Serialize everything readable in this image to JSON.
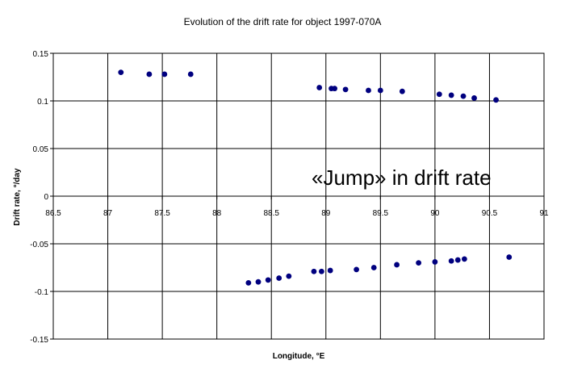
{
  "chart_data": {
    "type": "scatter",
    "title": "Evolution of the drift rate for object 1997-070A",
    "xlabel": "Longitude, °E",
    "ylabel": "Drift rate, °/day",
    "xlim": [
      86.5,
      91
    ],
    "ylim": [
      -0.15,
      0.15
    ],
    "x_ticks": [
      "86.5",
      "87",
      "87.5",
      "88",
      "88.5",
      "89",
      "89.5",
      "90",
      "90.5",
      "91"
    ],
    "y_ticks": [
      "0.15",
      "0.1",
      "0.05",
      "0",
      "-0.05",
      "-0.1",
      "-0.15"
    ],
    "grid": true,
    "legend": "none",
    "marker_color": "#00007f",
    "annotation": "«Jump» in drift rate",
    "series": [
      {
        "points": [
          [
            87.12,
            0.13
          ],
          [
            87.38,
            0.128
          ],
          [
            87.52,
            0.128
          ],
          [
            87.76,
            0.128
          ],
          [
            88.94,
            0.114
          ],
          [
            89.05,
            0.113
          ],
          [
            89.08,
            0.113
          ],
          [
            89.18,
            0.112
          ],
          [
            89.39,
            0.111
          ],
          [
            89.5,
            0.111
          ],
          [
            89.7,
            0.11
          ],
          [
            90.04,
            0.107
          ],
          [
            90.15,
            0.106
          ],
          [
            90.26,
            0.105
          ],
          [
            90.36,
            0.103
          ],
          [
            90.56,
            0.101
          ],
          [
            88.29,
            -0.091
          ],
          [
            88.38,
            -0.09
          ],
          [
            88.47,
            -0.088
          ],
          [
            88.57,
            -0.086
          ],
          [
            88.66,
            -0.084
          ],
          [
            88.89,
            -0.079
          ],
          [
            88.96,
            -0.079
          ],
          [
            89.04,
            -0.078
          ],
          [
            89.28,
            -0.077
          ],
          [
            89.44,
            -0.075
          ],
          [
            89.65,
            -0.072
          ],
          [
            89.85,
            -0.07
          ],
          [
            90.0,
            -0.069
          ],
          [
            90.15,
            -0.068
          ],
          [
            90.21,
            -0.067
          ],
          [
            90.27,
            -0.066
          ],
          [
            90.68,
            -0.064
          ]
        ]
      }
    ]
  }
}
